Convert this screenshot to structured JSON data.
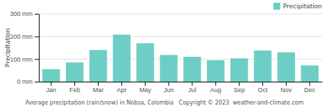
{
  "chart_data": {
    "type": "bar",
    "categories": [
      "Jan",
      "Feb",
      "Mar",
      "Apr",
      "May",
      "Jun",
      "Jul",
      "Aug",
      "Sep",
      "Oct",
      "Nov",
      "Dec"
    ],
    "series": [
      {
        "name": "Precipitation",
        "color": "#6DCEC5",
        "values": [
          55,
          85,
          140,
          208,
          170,
          118,
          110,
          95,
          103,
          138,
          130,
          72
        ]
      }
    ],
    "ylim": [
      0,
      300
    ],
    "yticks": [
      {
        "value": 0,
        "label": "0 mm"
      },
      {
        "value": 100,
        "label": "100 mm"
      },
      {
        "value": 200,
        "label": "200 mm"
      },
      {
        "value": 300,
        "label": "300 mm"
      }
    ],
    "ylabel": "Precipitation",
    "xlabel": "Average precipitation (rain/snow) in Nobsa, Colombia   Copyright © 2023  weather-and-climate.com",
    "grid": true,
    "legend": "upper right"
  }
}
